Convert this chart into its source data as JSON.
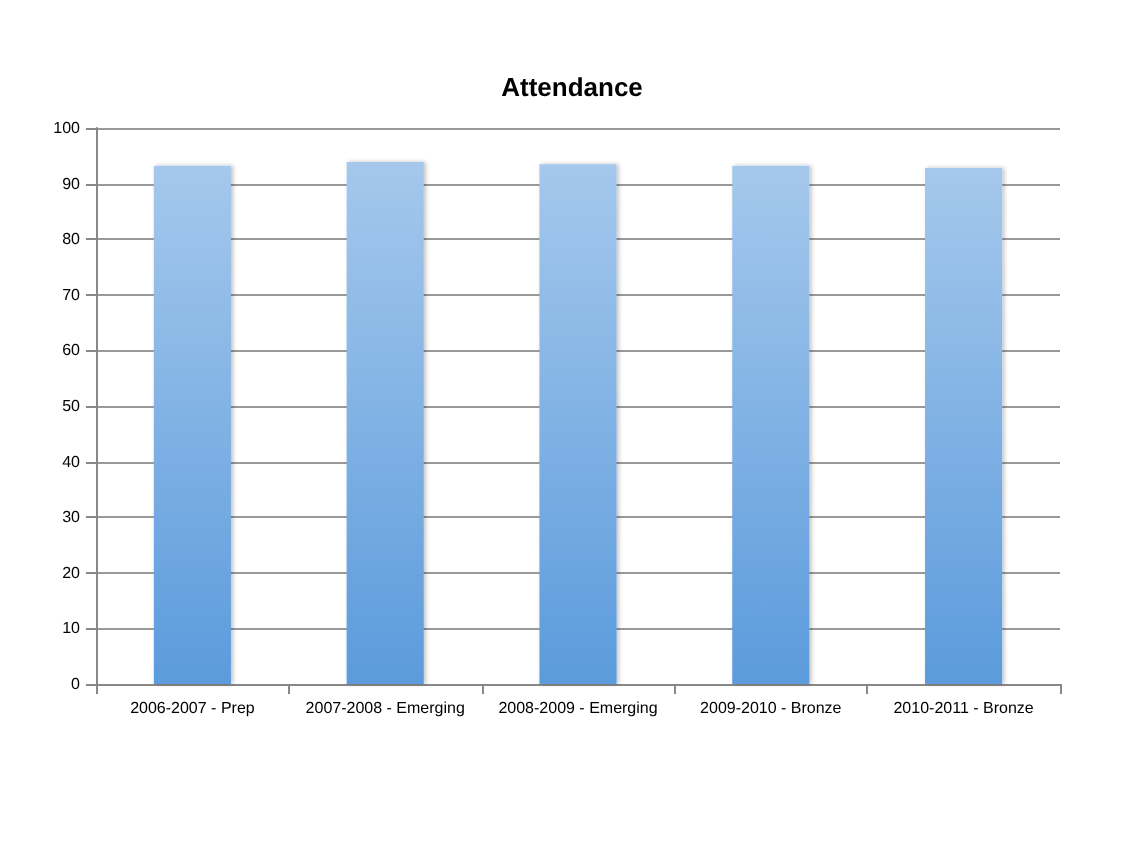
{
  "chart_data": {
    "type": "bar",
    "title": "Attendance",
    "categories": [
      "2006-2007 - Prep",
      "2007-2008 - Emerging",
      "2008-2009 - Emerging",
      "2009-2010 - Bronze",
      "2010-2011 - Bronze"
    ],
    "values": [
      93.2,
      93.9,
      93.5,
      93.2,
      92.8
    ],
    "color": "#5b9bdc",
    "ylim": [
      0,
      100
    ],
    "yticks": [
      0,
      10,
      20,
      30,
      40,
      50,
      60,
      70,
      80,
      90,
      100
    ],
    "grid": "y"
  }
}
